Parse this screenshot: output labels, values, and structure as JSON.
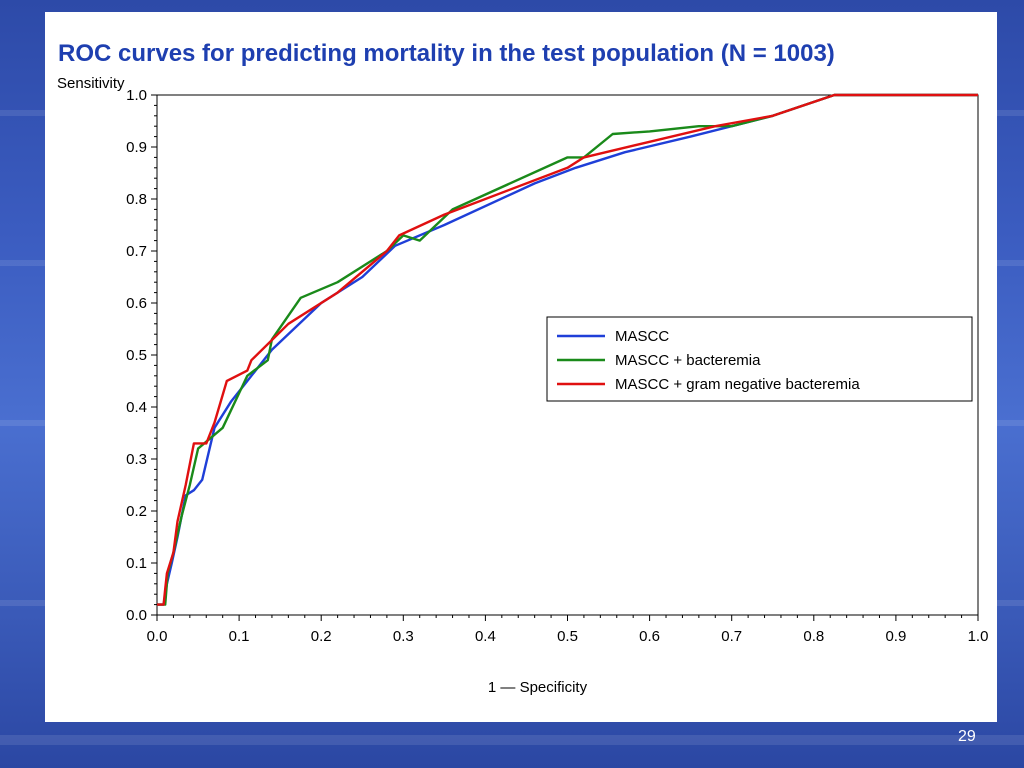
{
  "slide": {
    "title": "ROC curves for predicting mortality in the test population  (N = 1003)",
    "page_number": "29"
  },
  "colors": {
    "background": "#3b5cc0",
    "title": "#1e3fb0",
    "MASCC": "#1f3fd8",
    "MASCC_bacteremia": "#1a8a1a",
    "MASCC_gram_neg": "#e01010"
  },
  "chart_data": {
    "type": "line",
    "xlabel": "1 — Specificity",
    "ylabel": "Sensitivity",
    "xlim": [
      0,
      1
    ],
    "ylim": [
      0,
      1
    ],
    "xticks": [
      "0.0",
      "0.1",
      "0.2",
      "0.3",
      "0.4",
      "0.5",
      "0.6",
      "0.7",
      "0.8",
      "0.9",
      "1.0"
    ],
    "yticks": [
      "0.0",
      "0.1",
      "0.2",
      "0.3",
      "0.4",
      "0.5",
      "0.6",
      "0.7",
      "0.8",
      "0.9",
      "1.0"
    ],
    "grid": false,
    "legend_position": "right-middle",
    "series": [
      {
        "name": "MASCC",
        "color": "#1f3fd8",
        "points": [
          [
            0.0,
            0.02
          ],
          [
            0.008,
            0.02
          ],
          [
            0.012,
            0.06
          ],
          [
            0.018,
            0.1
          ],
          [
            0.025,
            0.15
          ],
          [
            0.035,
            0.23
          ],
          [
            0.045,
            0.24
          ],
          [
            0.055,
            0.26
          ],
          [
            0.07,
            0.36
          ],
          [
            0.09,
            0.41
          ],
          [
            0.14,
            0.51
          ],
          [
            0.2,
            0.6
          ],
          [
            0.25,
            0.65
          ],
          [
            0.29,
            0.71
          ],
          [
            0.35,
            0.75
          ],
          [
            0.46,
            0.83
          ],
          [
            0.51,
            0.86
          ],
          [
            0.57,
            0.89
          ],
          [
            0.65,
            0.92
          ],
          [
            0.75,
            0.96
          ],
          [
            0.825,
            1.0
          ],
          [
            1.0,
            1.0
          ]
        ]
      },
      {
        "name": "MASCC  +  bacteremia",
        "color": "#1a8a1a",
        "points": [
          [
            0.0,
            0.02
          ],
          [
            0.01,
            0.02
          ],
          [
            0.013,
            0.08
          ],
          [
            0.02,
            0.12
          ],
          [
            0.03,
            0.19
          ],
          [
            0.04,
            0.25
          ],
          [
            0.05,
            0.32
          ],
          [
            0.065,
            0.34
          ],
          [
            0.08,
            0.36
          ],
          [
            0.11,
            0.46
          ],
          [
            0.135,
            0.49
          ],
          [
            0.14,
            0.53
          ],
          [
            0.175,
            0.61
          ],
          [
            0.22,
            0.64
          ],
          [
            0.28,
            0.7
          ],
          [
            0.3,
            0.73
          ],
          [
            0.32,
            0.72
          ],
          [
            0.36,
            0.78
          ],
          [
            0.5,
            0.88
          ],
          [
            0.52,
            0.88
          ],
          [
            0.555,
            0.925
          ],
          [
            0.6,
            0.93
          ],
          [
            0.66,
            0.94
          ],
          [
            0.7,
            0.94
          ],
          [
            0.75,
            0.96
          ],
          [
            0.825,
            1.0
          ],
          [
            1.0,
            1.0
          ]
        ]
      },
      {
        "name": "MASCC  +  gram  negative  bacteremia",
        "color": "#e01010",
        "points": [
          [
            0.0,
            0.02
          ],
          [
            0.008,
            0.02
          ],
          [
            0.01,
            0.05
          ],
          [
            0.012,
            0.08
          ],
          [
            0.02,
            0.12
          ],
          [
            0.025,
            0.18
          ],
          [
            0.035,
            0.25
          ],
          [
            0.045,
            0.33
          ],
          [
            0.06,
            0.33
          ],
          [
            0.07,
            0.37
          ],
          [
            0.085,
            0.45
          ],
          [
            0.11,
            0.47
          ],
          [
            0.115,
            0.49
          ],
          [
            0.16,
            0.56
          ],
          [
            0.22,
            0.62
          ],
          [
            0.28,
            0.7
          ],
          [
            0.295,
            0.73
          ],
          [
            0.35,
            0.77
          ],
          [
            0.5,
            0.86
          ],
          [
            0.52,
            0.88
          ],
          [
            0.6,
            0.91
          ],
          [
            0.68,
            0.94
          ],
          [
            0.75,
            0.96
          ],
          [
            0.825,
            1.0
          ],
          [
            1.0,
            1.0
          ]
        ]
      }
    ]
  }
}
